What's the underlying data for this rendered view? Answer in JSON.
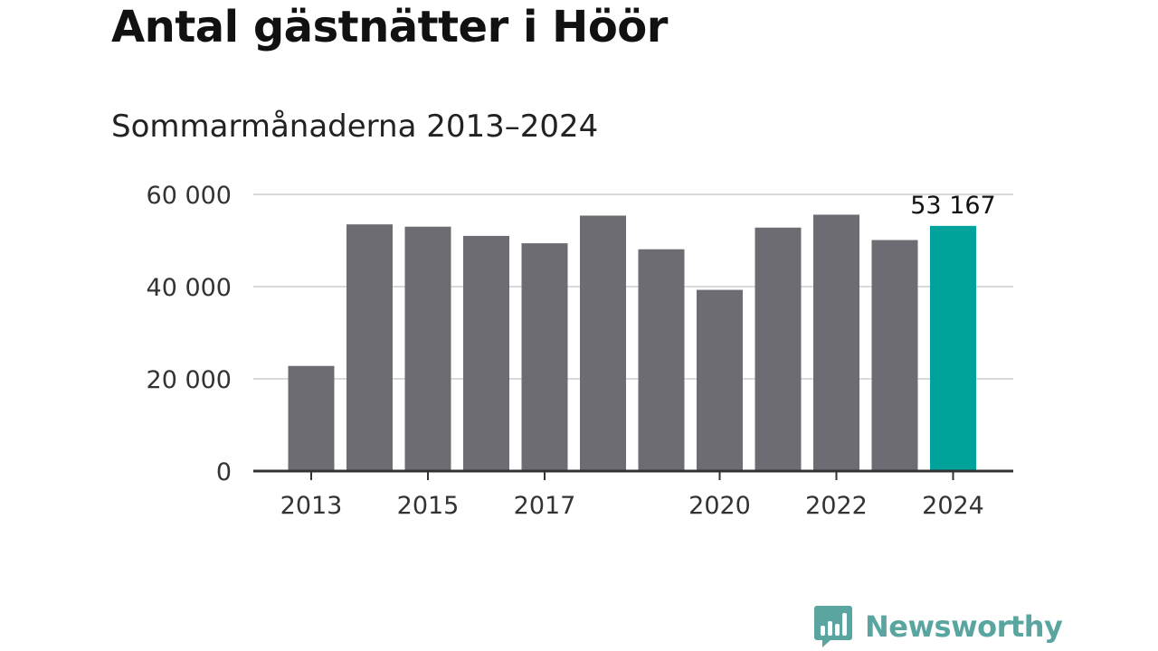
{
  "title": "Antal gästnätter i Höör",
  "subtitle": "Sommarmånaderna 2013–2024",
  "brand": {
    "name": "Newsworthy",
    "color": "#5aa5a0"
  },
  "colors": {
    "bar": "#6d6c72",
    "highlight": "#00a39b",
    "grid": "#d9d9d9",
    "axis": "#333333"
  },
  "chart_data": {
    "type": "bar",
    "title": "Antal gästnätter i Höör",
    "subtitle": "Sommarmånaderna 2013–2024",
    "categories": [
      "2013",
      "2014",
      "2015",
      "2016",
      "2017",
      "2018",
      "2019",
      "2020",
      "2021",
      "2022",
      "2023",
      "2024"
    ],
    "values": [
      22800,
      53500,
      53000,
      51000,
      49400,
      55400,
      48100,
      39300,
      52800,
      55600,
      50100,
      53167
    ],
    "highlight_index": 11,
    "data_labels": [
      {
        "index": 11,
        "text": "53 167"
      }
    ],
    "x_tick_labels": [
      "2013",
      "",
      "2015",
      "",
      "2017",
      "",
      "",
      "2020",
      "",
      "2022",
      "",
      "2024"
    ],
    "y_ticks": [
      {
        "value": 0,
        "label": "0"
      },
      {
        "value": 20000,
        "label": "20 000"
      },
      {
        "value": 40000,
        "label": "40 000"
      },
      {
        "value": 60000,
        "label": "60 000"
      }
    ],
    "ylim": [
      0,
      60000
    ],
    "xlabel": "",
    "ylabel": "",
    "grid": true,
    "legend": "none"
  }
}
